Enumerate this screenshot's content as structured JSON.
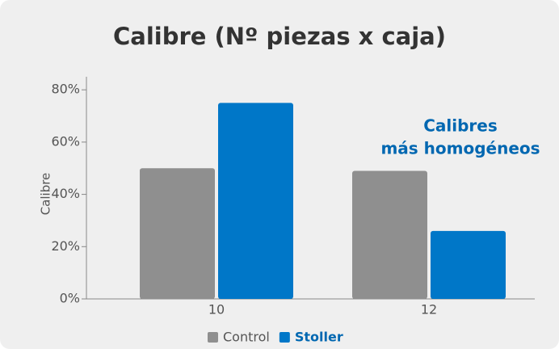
{
  "chart_data": {
    "type": "bar",
    "title": "Calibre (Nº piezas x caja)",
    "ylabel": "Calibre",
    "categories": [
      "10",
      "12"
    ],
    "series": [
      {
        "name": "Control",
        "color": "#8f8f8f",
        "values": [
          50,
          49
        ]
      },
      {
        "name": "Stoller",
        "color": "#0077c8",
        "values": [
          75,
          26
        ]
      }
    ],
    "ylim": [
      0,
      85
    ],
    "yticks": [
      {
        "value": 0,
        "label": "0%"
      },
      {
        "value": 20,
        "label": "20%"
      },
      {
        "value": 40,
        "label": "40%"
      },
      {
        "value": 60,
        "label": "60%"
      },
      {
        "value": 80,
        "label": "80%"
      }
    ],
    "annotation": [
      "Calibres",
      "más homogéneos"
    ],
    "legend": "bottom",
    "grid": false
  }
}
